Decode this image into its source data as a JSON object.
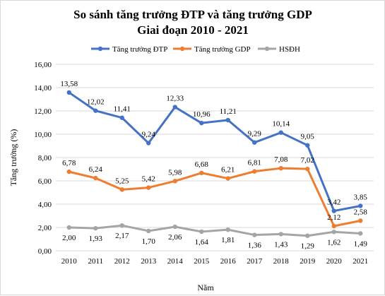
{
  "chart_data": {
    "type": "line",
    "title": "So sánh tăng trưởng ĐTP và tăng trưởng GDP",
    "subtitle": "Giai đoạn 2010 - 2021",
    "xlabel": "Năm",
    "ylabel": "Tăng trưởng (%)",
    "ylim": [
      0,
      16
    ],
    "ytick_step": 2,
    "ytick_labels": [
      "0,00",
      "2,00",
      "4,00",
      "6,00",
      "8,00",
      "10,00",
      "12,00",
      "14,00",
      "16,00"
    ],
    "grid": true,
    "legend_position": "top",
    "categories": [
      "2010",
      "2011",
      "2012",
      "2013",
      "2014",
      "2015",
      "2016",
      "2017",
      "2018",
      "2019",
      "2020",
      "2021"
    ],
    "series": [
      {
        "name": "Tăng trưởng ĐTP",
        "color": "#4472c4",
        "values": [
          13.58,
          12.02,
          11.41,
          9.24,
          12.33,
          10.96,
          11.21,
          9.29,
          10.14,
          9.05,
          3.42,
          3.85
        ],
        "labels": [
          "13,58",
          "12,02",
          "11,41",
          "9,24",
          "12,33",
          "10,96",
          "11,21",
          "9,29",
          "10,14",
          "9,05",
          "3,42",
          "3,85"
        ]
      },
      {
        "name": "Tăng trưởng GDP",
        "color": "#ed7d31",
        "values": [
          6.78,
          6.24,
          5.25,
          5.42,
          5.98,
          6.68,
          6.21,
          6.81,
          7.08,
          7.02,
          2.12,
          2.58
        ],
        "labels": [
          "6,78",
          "6,24",
          "5,25",
          "5,42",
          "5,98",
          "6,68",
          "6,21",
          "6,81",
          "7,08",
          "7,02",
          "2,12",
          "2,58"
        ]
      },
      {
        "name": "HSĐH",
        "color": "#a5a5a5",
        "values": [
          2.0,
          1.93,
          2.17,
          1.7,
          2.06,
          1.64,
          1.81,
          1.36,
          1.43,
          1.29,
          1.62,
          1.49
        ],
        "labels": [
          "2,00",
          "1,93",
          "2,17",
          "1,70",
          "2,06",
          "1,64",
          "1,81",
          "1,36",
          "1,43",
          "1,29",
          "1,62",
          "1,49"
        ]
      }
    ]
  }
}
